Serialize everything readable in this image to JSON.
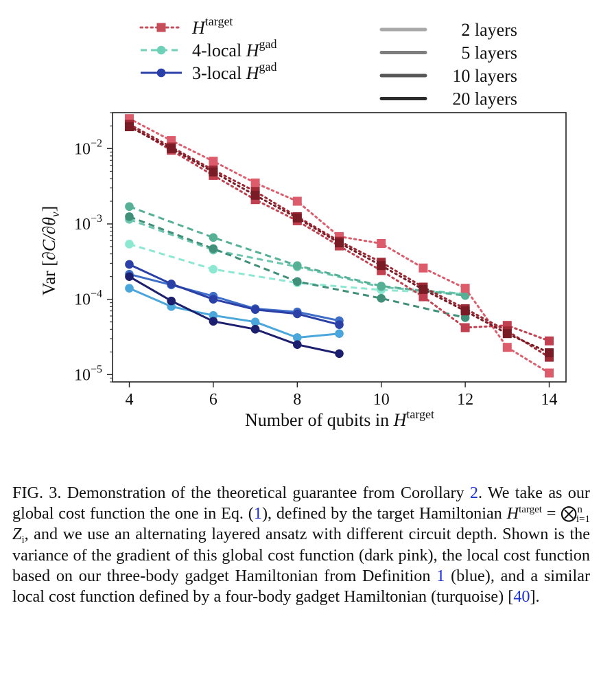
{
  "chart_data": {
    "type": "line",
    "xlabel": "Number of qubits in H^target",
    "ylabel": "Var [∂C/∂θ_ν]",
    "x_scale": "linear",
    "y_scale": "log",
    "xlim": [
      3.6,
      14.4
    ],
    "ylim": [
      8e-06,
      0.03
    ],
    "xticks": [
      4,
      6,
      8,
      10,
      12,
      14
    ],
    "yticks": [
      1e-05,
      0.0001,
      0.001,
      0.01
    ],
    "grid": false,
    "legend_cost": [
      {
        "key": "target",
        "label": "H",
        "sup": "target",
        "color": "#c44e5a",
        "style": "dotted",
        "marker": "square"
      },
      {
        "key": "gad4",
        "label": "4-local H",
        "sup": "gad",
        "color": "#6fd0b8",
        "style": "dashed",
        "marker": "circle"
      },
      {
        "key": "gad3",
        "label": "3-local H",
        "sup": "gad",
        "color": "#2b3fa8",
        "style": "solid",
        "marker": "circle"
      }
    ],
    "legend_layers": [
      {
        "label": "2 layers",
        "color": "#a9a9a9"
      },
      {
        "label": "5 layers",
        "color": "#7d7d7d"
      },
      {
        "label": "10 layers",
        "color": "#575757"
      },
      {
        "label": "20 layers",
        "color": "#2b2b2b"
      }
    ],
    "series": [
      {
        "family": "target",
        "layers": 2,
        "color": "#dd5c6c",
        "x": [
          4,
          5,
          6,
          7,
          8,
          9,
          10,
          11,
          12,
          13,
          14
        ],
        "y": [
          0.025,
          0.0128,
          0.0068,
          0.0035,
          0.002,
          0.00068,
          0.00055,
          0.00026,
          0.00014,
          2.3e-05,
          1.05e-05
        ]
      },
      {
        "family": "target",
        "layers": 5,
        "color": "#c1404f",
        "x": [
          4,
          5,
          6,
          7,
          8,
          9,
          10,
          11,
          12,
          13,
          14
        ],
        "y": [
          0.02,
          0.0095,
          0.0044,
          0.0021,
          0.0011,
          0.00051,
          0.00024,
          0.000108,
          4.2e-05,
          4.5e-05,
          2.8e-05
        ]
      },
      {
        "family": "target",
        "layers": 10,
        "color": "#9e2a35",
        "x": [
          4,
          5,
          6,
          7,
          8,
          9,
          10,
          11,
          12,
          13,
          14
        ],
        "y": [
          0.021,
          0.0105,
          0.0052,
          0.0027,
          0.00125,
          0.00059,
          0.00031,
          0.000145,
          7.5e-05,
          3.8e-05,
          1.7e-05
        ]
      },
      {
        "family": "target",
        "layers": 20,
        "color": "#7a1c26",
        "x": [
          4,
          5,
          6,
          7,
          8,
          9,
          10,
          11,
          12,
          13,
          14
        ],
        "y": [
          0.0195,
          0.01,
          0.0049,
          0.0024,
          0.0012,
          0.00056,
          0.00028,
          0.000135,
          7e-05,
          3.5e-05,
          1.95e-05
        ]
      },
      {
        "family": "gad4",
        "layers": 2,
        "color": "#8de8d2",
        "x": [
          4,
          6,
          8,
          10,
          12
        ],
        "y": [
          0.00054,
          0.00025,
          0.000165,
          0.000133,
          0.000118
        ]
      },
      {
        "family": "gad4",
        "layers": 5,
        "color": "#6cc6ae",
        "x": [
          4,
          6,
          8,
          10,
          12
        ],
        "y": [
          0.00115,
          0.00045,
          0.00027,
          0.000145,
          0.000118
        ]
      },
      {
        "family": "gad4",
        "layers": 10,
        "color": "#56b096",
        "x": [
          4,
          6,
          8,
          10,
          12
        ],
        "y": [
          0.0017,
          0.00066,
          0.00028,
          0.00015,
          0.000112
        ]
      },
      {
        "family": "gad4",
        "layers": 20,
        "color": "#3f8f79",
        "x": [
          4,
          6,
          8,
          10,
          12
        ],
        "y": [
          0.00125,
          0.00047,
          0.000172,
          0.000103,
          5.7e-05
        ]
      },
      {
        "family": "gad3",
        "layers": 2,
        "color": "#4ba6dc",
        "x": [
          4,
          5,
          6,
          7,
          8,
          9
        ],
        "y": [
          0.00014,
          8e-05,
          6.1e-05,
          5e-05,
          3.1e-05,
          3.5e-05
        ]
      },
      {
        "family": "gad3",
        "layers": 5,
        "color": "#3f6ec9",
        "x": [
          4,
          5,
          6,
          7,
          8,
          9
        ],
        "y": [
          0.000215,
          0.000155,
          0.00011,
          7.5e-05,
          6.8e-05,
          5.2e-05
        ]
      },
      {
        "family": "gad3",
        "layers": 10,
        "color": "#2a40a6",
        "x": [
          4,
          5,
          6,
          7,
          8,
          9
        ],
        "y": [
          0.00029,
          0.00016,
          0.0001,
          7.3e-05,
          6.4e-05,
          4.6e-05
        ]
      },
      {
        "family": "gad3",
        "layers": 20,
        "color": "#1c1e6e",
        "x": [
          4,
          5,
          6,
          7,
          8,
          9
        ],
        "y": [
          0.0002,
          9.5e-05,
          5.1e-05,
          4e-05,
          2.5e-05,
          1.9e-05
        ]
      }
    ]
  },
  "caption": {
    "label": "FIG. 3.",
    "part1": " Demonstration of the theoretical guarantee from Corollary ",
    "ref1": "2",
    "part2": ". We take as our global cost function the one in Eq. (",
    "ref2": "1",
    "part3": "), defined by the target Hamiltonian ",
    "h_letter": "H",
    "h_sup": "target",
    "eq_text": " = ⨂",
    "eq_sub": "i=1",
    "eq_sup": "n",
    "eq_z": " Z",
    "eq_zsub": "i",
    "part4": ", and we use an alternating layered ansatz with different circuit depth. Shown is the variance of the gradient of this global cost function (dark pink), the local cost function based on our three-body gadget Hamiltonian from Definition ",
    "ref3": "1",
    "part5": " (blue), and a similar local cost function defined by a four-body gadget Hamiltonian (turquoise) [",
    "ref4": "40",
    "part6": "]."
  }
}
